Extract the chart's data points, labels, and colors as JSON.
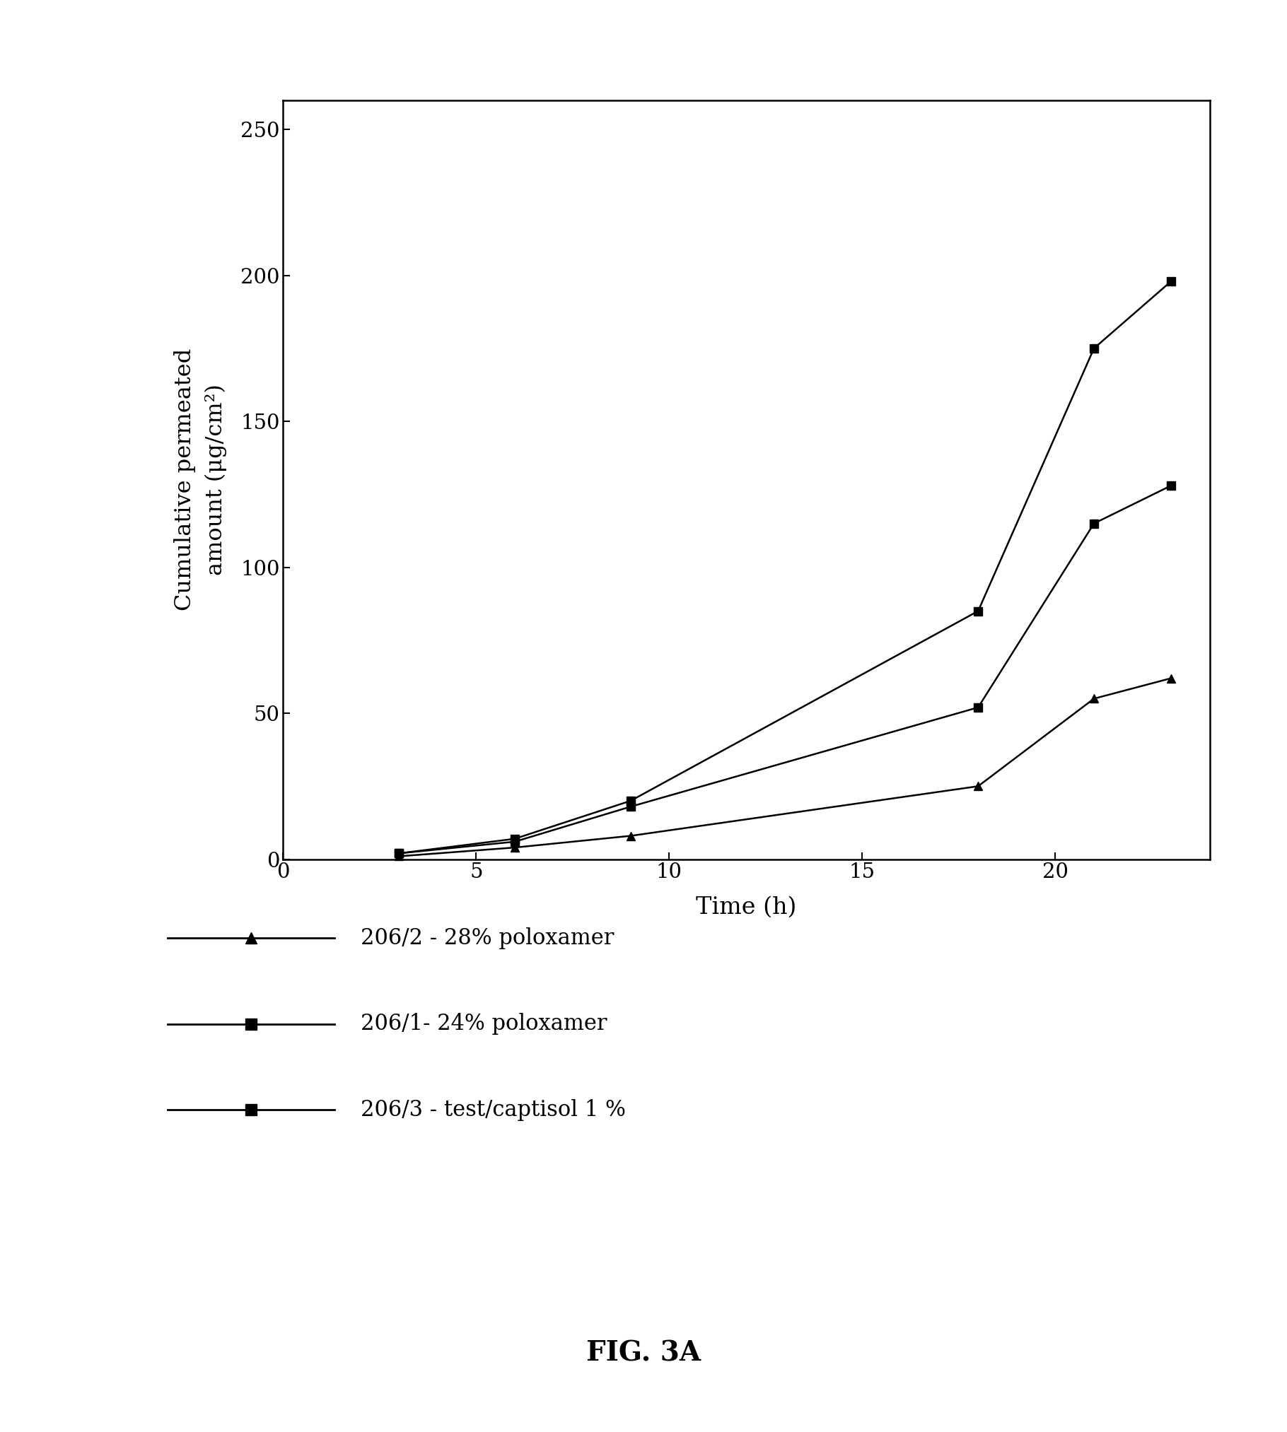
{
  "series": [
    {
      "label": "206/2 - 28% poloxamer",
      "marker": "^",
      "x": [
        3,
        6,
        9,
        18,
        21,
        23
      ],
      "y": [
        1,
        4,
        8,
        25,
        55,
        62
      ]
    },
    {
      "label": "206/1- 24% poloxamer",
      "marker": "s",
      "x": [
        3,
        6,
        9,
        18,
        21,
        23
      ],
      "y": [
        2,
        6,
        18,
        52,
        115,
        128
      ]
    },
    {
      "label": "206/3 - test/captisol 1 %",
      "marker": "s",
      "x": [
        3,
        6,
        9,
        18,
        21,
        23
      ],
      "y": [
        2,
        7,
        20,
        85,
        175,
        198
      ]
    }
  ],
  "xlabel": "Time (h)",
  "ylabel": "Cumulative permeated\namount (μg/cm²)",
  "xlim": [
    0,
    24
  ],
  "ylim": [
    0,
    260
  ],
  "xticks": [
    0,
    5,
    10,
    15,
    20
  ],
  "yticks": [
    0,
    50,
    100,
    150,
    200,
    250
  ],
  "fig_caption": "FIG. 3A",
  "line_color": "#000000",
  "marker_size": 9,
  "line_width": 1.8
}
